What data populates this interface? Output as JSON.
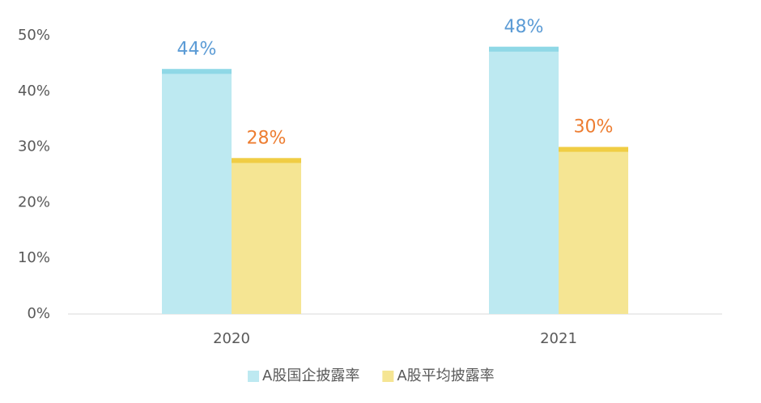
{
  "chart_data": {
    "type": "bar",
    "categories": [
      "2020",
      "2021"
    ],
    "series": [
      {
        "name": "A股国企披露率",
        "color": "#bde9f1",
        "cap_color": "#8fd8e6",
        "label_color": "#5b9bd5",
        "values": [
          44,
          48
        ],
        "value_labels": [
          "44%",
          "48%"
        ]
      },
      {
        "name": "A股平均披露率",
        "color": "#f5e593",
        "cap_color": "#f0cd44",
        "label_color": "#ed7d31",
        "values": [
          28,
          30
        ],
        "value_labels": [
          "28%",
          "30%"
        ]
      }
    ],
    "ylim": [
      0,
      50
    ],
    "yticks": [
      {
        "value": 0,
        "label": "0%"
      },
      {
        "value": 10,
        "label": "10%"
      },
      {
        "value": 20,
        "label": "20%"
      },
      {
        "value": 30,
        "label": "30%"
      },
      {
        "value": 40,
        "label": "40%"
      },
      {
        "value": 50,
        "label": "50%"
      }
    ],
    "legend": "bottom"
  }
}
